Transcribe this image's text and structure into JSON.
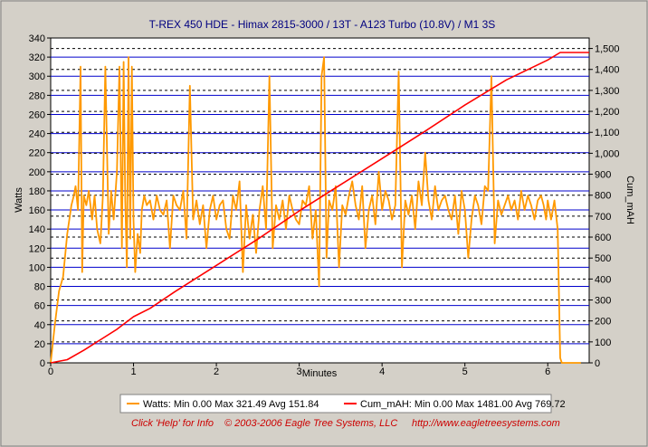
{
  "chart_data": {
    "type": "line",
    "title": "T-REX 450 HDE - Himax 2815-3000 / 13T - A123 Turbo (10.8V) / M1 3S",
    "xlabel": "Minutes",
    "ylabel": "Watts",
    "y2label": "Cum_mAH",
    "xlim": [
      0,
      6.5
    ],
    "ylim": [
      0,
      340
    ],
    "y2lim": [
      0,
      1550
    ],
    "x_ticks": [
      0,
      1,
      2,
      3,
      4,
      5,
      6
    ],
    "y_ticks": [
      0,
      20,
      40,
      60,
      80,
      100,
      120,
      140,
      160,
      180,
      200,
      220,
      240,
      260,
      280,
      300,
      320,
      340
    ],
    "y2_ticks": [
      "0",
      "100",
      "200",
      "300",
      "400",
      "500",
      "600",
      "700",
      "800",
      "900",
      "1,000",
      "1,100",
      "1,200",
      "1,300",
      "1,400",
      "1,500"
    ],
    "grid": true,
    "legend_position": "bottom",
    "series": [
      {
        "name": "Watts",
        "axis": "left",
        "color": "#ff9900",
        "x": [
          0.0,
          0.05,
          0.1,
          0.15,
          0.2,
          0.25,
          0.28,
          0.3,
          0.33,
          0.36,
          0.38,
          0.4,
          0.43,
          0.46,
          0.5,
          0.53,
          0.56,
          0.6,
          0.63,
          0.66,
          0.7,
          0.73,
          0.76,
          0.8,
          0.83,
          0.86,
          0.88,
          0.9,
          0.92,
          0.94,
          0.96,
          0.98,
          1.0,
          1.02,
          1.05,
          1.08,
          1.1,
          1.13,
          1.16,
          1.2,
          1.24,
          1.28,
          1.32,
          1.36,
          1.4,
          1.44,
          1.48,
          1.52,
          1.56,
          1.6,
          1.64,
          1.68,
          1.72,
          1.76,
          1.8,
          1.84,
          1.88,
          1.92,
          1.96,
          2.0,
          2.04,
          2.08,
          2.12,
          2.16,
          2.2,
          2.24,
          2.28,
          2.32,
          2.36,
          2.4,
          2.44,
          2.48,
          2.52,
          2.56,
          2.6,
          2.64,
          2.68,
          2.72,
          2.76,
          2.8,
          2.84,
          2.88,
          2.92,
          2.96,
          3.0,
          3.04,
          3.08,
          3.12,
          3.16,
          3.2,
          3.24,
          3.27,
          3.3,
          3.33,
          3.36,
          3.4,
          3.44,
          3.48,
          3.52,
          3.56,
          3.6,
          3.64,
          3.68,
          3.72,
          3.76,
          3.8,
          3.84,
          3.88,
          3.92,
          3.96,
          4.0,
          4.04,
          4.08,
          4.12,
          4.16,
          4.2,
          4.24,
          4.28,
          4.32,
          4.36,
          4.4,
          4.44,
          4.48,
          4.52,
          4.56,
          4.6,
          4.64,
          4.68,
          4.72,
          4.76,
          4.8,
          4.84,
          4.88,
          4.92,
          4.96,
          5.0,
          5.04,
          5.08,
          5.12,
          5.16,
          5.2,
          5.24,
          5.28,
          5.32,
          5.36,
          5.4,
          5.44,
          5.48,
          5.52,
          5.56,
          5.6,
          5.64,
          5.68,
          5.72,
          5.76,
          5.8,
          5.84,
          5.88,
          5.92,
          5.95,
          5.98,
          6.0,
          6.04,
          6.08,
          6.12,
          6.15,
          6.17,
          6.2,
          6.25,
          6.3,
          6.35,
          6.4
        ],
        "values": [
          0,
          40,
          75,
          90,
          135,
          165,
          175,
          185,
          160,
          310,
          95,
          175,
          165,
          180,
          150,
          175,
          140,
          125,
          175,
          310,
          135,
          180,
          150,
          200,
          310,
          120,
          315,
          170,
          100,
          320,
          130,
          310,
          150,
          95,
          135,
          115,
          160,
          175,
          165,
          170,
          150,
          175,
          160,
          155,
          170,
          120,
          175,
          165,
          160,
          180,
          130,
          290,
          150,
          170,
          145,
          165,
          120,
          160,
          175,
          150,
          165,
          170,
          140,
          130,
          175,
          160,
          190,
          95,
          165,
          130,
          155,
          115,
          160,
          185,
          140,
          300,
          120,
          165,
          150,
          170,
          140,
          175,
          160,
          150,
          145,
          170,
          165,
          185,
          130,
          160,
          80,
          300,
          320,
          110,
          170,
          160,
          185,
          100,
          165,
          155,
          175,
          190,
          165,
          150,
          185,
          120,
          160,
          175,
          145,
          200,
          160,
          180,
          170,
          150,
          165,
          305,
          100,
          170,
          155,
          175,
          140,
          190,
          165,
          220,
          170,
          150,
          185,
          160,
          170,
          175,
          160,
          150,
          175,
          135,
          180,
          160,
          110,
          150,
          175,
          165,
          145,
          185,
          180,
          300,
          125,
          170,
          155,
          165,
          175,
          160,
          170,
          150,
          180,
          160,
          175,
          165,
          150,
          170,
          175,
          165,
          150,
          170,
          150,
          170,
          140,
          5,
          0,
          0,
          0,
          0,
          0,
          0
        ]
      },
      {
        "name": "Cum_mAH",
        "axis": "right",
        "color": "#ff0000",
        "x": [
          0.0,
          0.2,
          0.4,
          0.6,
          0.8,
          1.0,
          1.2,
          1.5,
          2.0,
          2.5,
          3.0,
          3.5,
          4.0,
          4.5,
          5.0,
          5.5,
          6.0,
          6.15,
          6.2,
          6.5
        ],
        "values": [
          0,
          15,
          60,
          110,
          160,
          220,
          260,
          340,
          465,
          590,
          725,
          850,
          975,
          1100,
          1230,
          1350,
          1445,
          1481,
          1481,
          1481
        ]
      }
    ]
  },
  "legend": {
    "watts": "Watts:  Min 0.00 Max 321.49 Avg 151.84",
    "cum": "Cum_mAH:  Min 0.00 Max 1481.00 Avg 769.72"
  },
  "footer": {
    "help": "Click 'Help' for Info",
    "copyright": "© 2003-2006 Eagle Tree Systems, LLC",
    "url": "http://www.eagletreesystems.com"
  },
  "colors": {
    "background": "#d4d0c8",
    "plot_background": "#ffffff",
    "grid_solid": "#0000cc",
    "grid_dashed": "#000000",
    "footer_text": "#cc0000"
  }
}
